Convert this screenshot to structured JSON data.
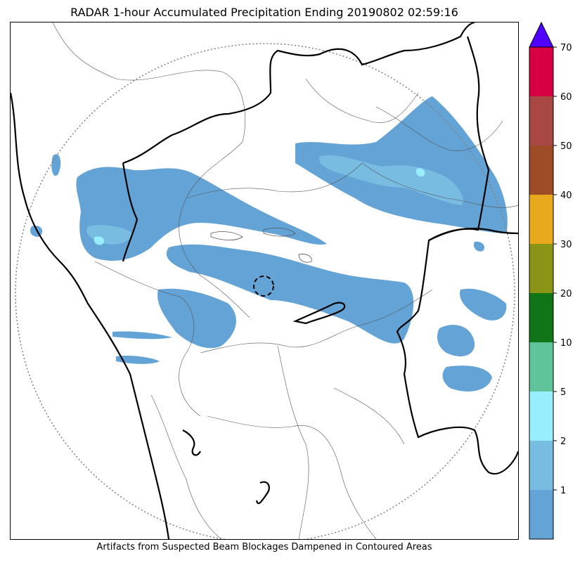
{
  "title": "RADAR 1-hour Accumulated Precipitation Ending 20190802 02:59:16",
  "footer": "Artifacts from Suspected Beam Blockages Dampened in Contoured Areas",
  "colorbar": {
    "ticks": [
      "1",
      "2",
      "5",
      "10",
      "20",
      "30",
      "40",
      "50",
      "60",
      "70"
    ],
    "bins": [
      {
        "color": "#64a3d5"
      },
      {
        "color": "#79bce2"
      },
      {
        "color": "#98eefc"
      },
      {
        "color": "#60c49b"
      },
      {
        "color": "#107517"
      },
      {
        "color": "#8a9415"
      },
      {
        "color": "#e8a91c"
      },
      {
        "color": "#9d4c27"
      },
      {
        "color": "#a84845"
      },
      {
        "color": "#d70043"
      }
    ],
    "extend_color": "#5000ff"
  }
}
